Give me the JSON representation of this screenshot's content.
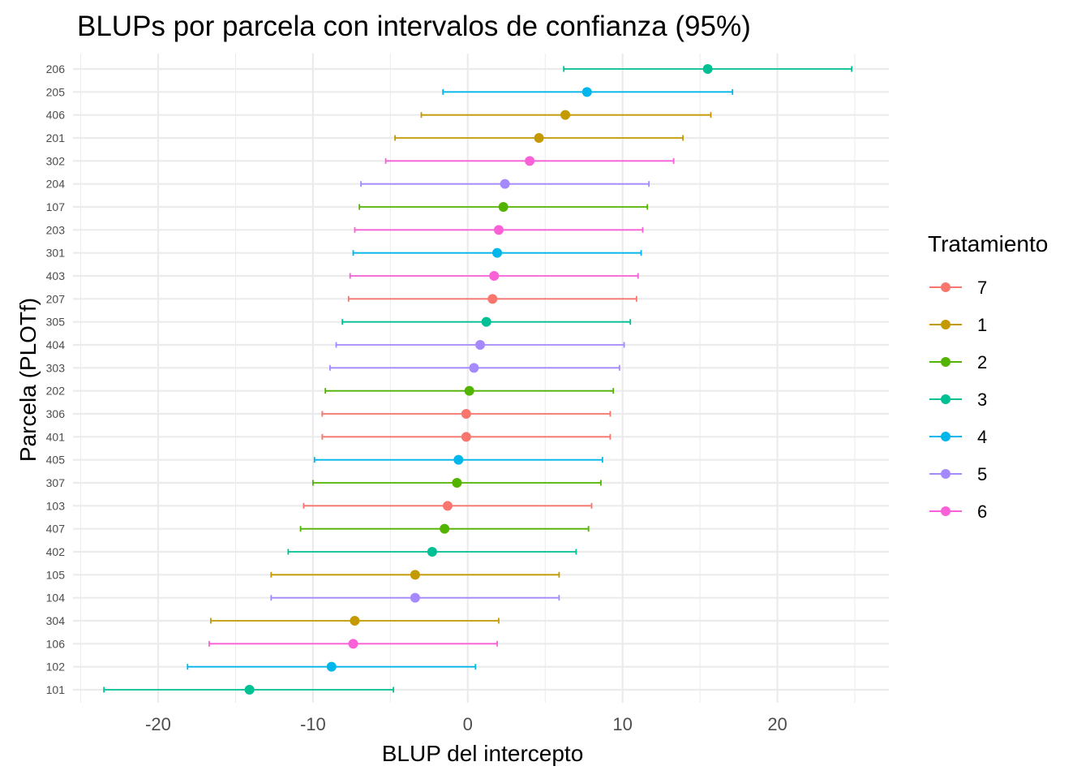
{
  "chart_data": {
    "type": "dot-errorbar",
    "title": "BLUPs por parcela con intervalos de confianza (95%)",
    "xlabel": "BLUP del intercepto",
    "ylabel": "Parcela (PLOTf)",
    "xlim": [
      -25.5,
      27.2
    ],
    "x_ticks": [
      -20,
      -10,
      0,
      10,
      20
    ],
    "x_tick_labels": [
      "-20",
      "-10",
      "0",
      "10",
      "20"
    ],
    "grid": true,
    "legend_position": "right",
    "legend": {
      "title": "Tratamiento",
      "items": [
        {
          "label": "7",
          "color": "#F8766D"
        },
        {
          "label": "1",
          "color": "#C49A00"
        },
        {
          "label": "2",
          "color": "#53B400"
        },
        {
          "label": "3",
          "color": "#00C094"
        },
        {
          "label": "4",
          "color": "#00B6EB"
        },
        {
          "label": "5",
          "color": "#A58AFF"
        },
        {
          "label": "6",
          "color": "#FB61D7"
        }
      ]
    },
    "points": [
      {
        "plot": "206",
        "tratamiento": "3",
        "blup": 15.5,
        "lower": 6.2,
        "upper": 24.8
      },
      {
        "plot": "205",
        "tratamiento": "4",
        "blup": 7.7,
        "lower": -1.6,
        "upper": 17.1
      },
      {
        "plot": "406",
        "tratamiento": "1",
        "blup": 6.3,
        "lower": -3.0,
        "upper": 15.7
      },
      {
        "plot": "201",
        "tratamiento": "1",
        "blup": 4.6,
        "lower": -4.7,
        "upper": 13.9
      },
      {
        "plot": "302",
        "tratamiento": "6",
        "blup": 4.0,
        "lower": -5.3,
        "upper": 13.3
      },
      {
        "plot": "204",
        "tratamiento": "5",
        "blup": 2.4,
        "lower": -6.9,
        "upper": 11.7
      },
      {
        "plot": "107",
        "tratamiento": "2",
        "blup": 2.3,
        "lower": -7.0,
        "upper": 11.6
      },
      {
        "plot": "203",
        "tratamiento": "6",
        "blup": 2.0,
        "lower": -7.3,
        "upper": 11.3
      },
      {
        "plot": "301",
        "tratamiento": "4",
        "blup": 1.9,
        "lower": -7.4,
        "upper": 11.2
      },
      {
        "plot": "403",
        "tratamiento": "6",
        "blup": 1.7,
        "lower": -7.6,
        "upper": 11.0
      },
      {
        "plot": "207",
        "tratamiento": "7",
        "blup": 1.6,
        "lower": -7.7,
        "upper": 10.9
      },
      {
        "plot": "305",
        "tratamiento": "3",
        "blup": 1.2,
        "lower": -8.1,
        "upper": 10.5
      },
      {
        "plot": "404",
        "tratamiento": "5",
        "blup": 0.8,
        "lower": -8.5,
        "upper": 10.1
      },
      {
        "plot": "303",
        "tratamiento": "5",
        "blup": 0.4,
        "lower": -8.9,
        "upper": 9.8
      },
      {
        "plot": "202",
        "tratamiento": "2",
        "blup": 0.1,
        "lower": -9.2,
        "upper": 9.4
      },
      {
        "plot": "306",
        "tratamiento": "7",
        "blup": -0.1,
        "lower": -9.4,
        "upper": 9.2
      },
      {
        "plot": "401",
        "tratamiento": "7",
        "blup": -0.1,
        "lower": -9.4,
        "upper": 9.2
      },
      {
        "plot": "405",
        "tratamiento": "4",
        "blup": -0.6,
        "lower": -9.9,
        "upper": 8.7
      },
      {
        "plot": "307",
        "tratamiento": "2",
        "blup": -0.7,
        "lower": -10.0,
        "upper": 8.6
      },
      {
        "plot": "103",
        "tratamiento": "7",
        "blup": -1.3,
        "lower": -10.6,
        "upper": 8.0
      },
      {
        "plot": "407",
        "tratamiento": "2",
        "blup": -1.5,
        "lower": -10.8,
        "upper": 7.8
      },
      {
        "plot": "402",
        "tratamiento": "3",
        "blup": -2.3,
        "lower": -11.6,
        "upper": 7.0
      },
      {
        "plot": "105",
        "tratamiento": "1",
        "blup": -3.4,
        "lower": -12.7,
        "upper": 5.9
      },
      {
        "plot": "104",
        "tratamiento": "5",
        "blup": -3.4,
        "lower": -12.7,
        "upper": 5.9
      },
      {
        "plot": "304",
        "tratamiento": "1",
        "blup": -7.3,
        "lower": -16.6,
        "upper": 2.0
      },
      {
        "plot": "106",
        "tratamiento": "6",
        "blup": -7.4,
        "lower": -16.7,
        "upper": 1.9
      },
      {
        "plot": "102",
        "tratamiento": "4",
        "blup": -8.8,
        "lower": -18.1,
        "upper": 0.5
      },
      {
        "plot": "101",
        "tratamiento": "3",
        "blup": -14.1,
        "lower": -23.5,
        "upper": -4.8
      }
    ]
  }
}
